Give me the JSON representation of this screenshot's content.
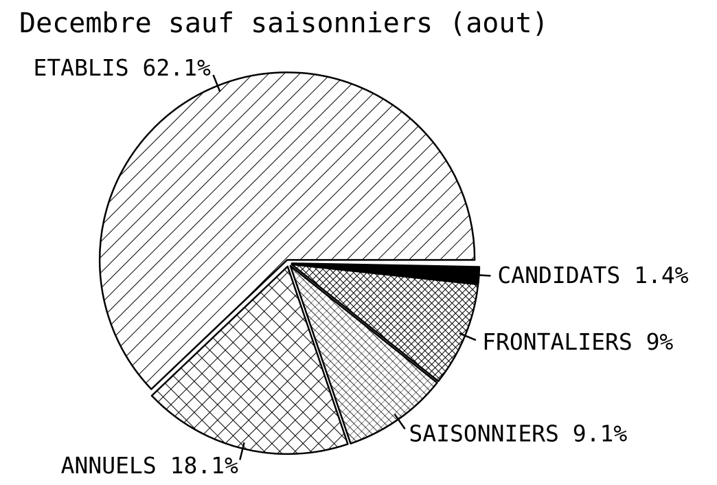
{
  "chart_data": {
    "type": "pie",
    "title": "Decembre sauf saisonniers (aout)",
    "categories": [
      "ETABLIS",
      "ANNUELS",
      "SAISONNIERS",
      "FRONTALIERS",
      "CANDIDATS"
    ],
    "values": [
      62.1,
      18.1,
      9.1,
      9,
      1.4
    ],
    "value_labels": [
      "62.1%",
      "18.1%",
      "9.1%",
      "9%",
      "1.4%"
    ]
  }
}
